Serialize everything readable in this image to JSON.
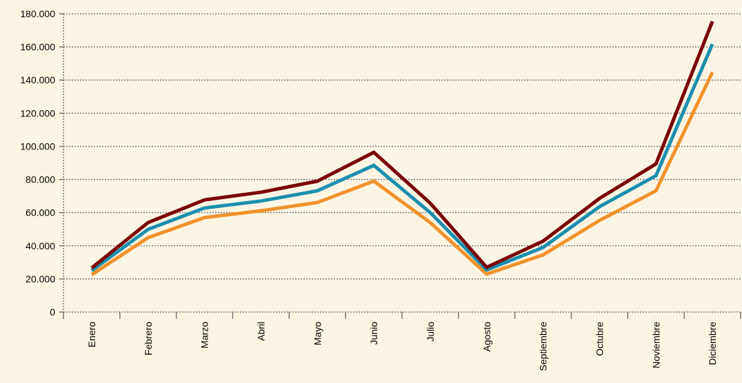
{
  "chart_data": {
    "type": "line",
    "categories": [
      "Enero",
      "Febrero",
      "Marzo",
      "Abril",
      "Mayo",
      "Junio",
      "Julio",
      "Agosto",
      "Septiembre",
      "Octubre",
      "Noviembre",
      "Diciembre"
    ],
    "series": [
      {
        "color": "#f0922b",
        "values": [
          22500,
          44900,
          57000,
          61100,
          66100,
          79000,
          54000,
          22900,
          34500,
          55300,
          73200,
          144700
        ]
      },
      {
        "color": "#1a8fae",
        "values": [
          25000,
          49900,
          62800,
          67000,
          73200,
          88500,
          60000,
          25400,
          39000,
          63600,
          82300,
          161700
        ]
      },
      {
        "color": "#7b0000",
        "values": [
          26600,
          54000,
          67700,
          72300,
          79000,
          96400,
          65700,
          27000,
          42800,
          68600,
          89400,
          175400
        ]
      }
    ],
    "ylim": [
      0,
      180000
    ],
    "yticks": [
      0,
      {
        "value": 20000,
        "label": "20.000"
      },
      {
        "value": 40000,
        "label": "40.000"
      },
      {
        "value": 60000,
        "label": "60.000"
      },
      {
        "value": 80000,
        "label": "80.000"
      },
      {
        "value": 100000,
        "label": "100.000"
      },
      {
        "value": 120000,
        "label": "120.000"
      },
      {
        "value": 140000,
        "label": "140.000"
      },
      {
        "value": 160000,
        "label": "160.000"
      },
      {
        "value": 180000,
        "label": "180.000"
      }
    ],
    "grid": true
  }
}
